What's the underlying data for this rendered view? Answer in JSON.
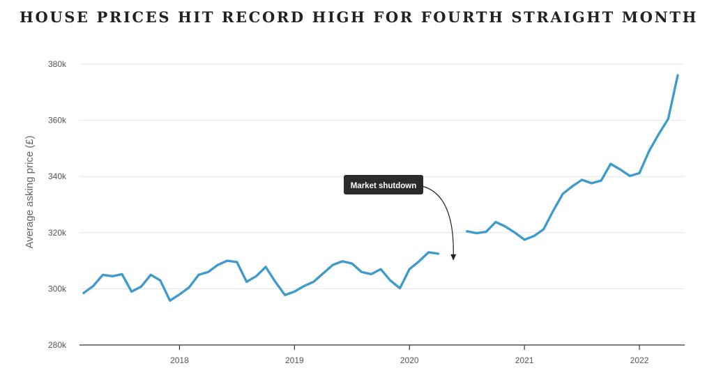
{
  "chart_data": {
    "type": "line",
    "title": "HOUSE PRICES HIT RECORD HIGH FOR FOURTH STRAIGHT MONTH",
    "xlabel": "",
    "ylabel": "Average asking price (£)",
    "ylim": [
      280000,
      380000
    ],
    "y_ticks": [
      {
        "value": 280000,
        "label": "280k"
      },
      {
        "value": 300000,
        "label": "300k"
      },
      {
        "value": 320000,
        "label": "320k"
      },
      {
        "value": 340000,
        "label": "340k"
      },
      {
        "value": 360000,
        "label": "360k"
      },
      {
        "value": 380000,
        "label": "380k"
      }
    ],
    "x_range": [
      "2017-03",
      "2022-05"
    ],
    "x_ticks": [
      {
        "value": "2018-01",
        "label": "2018"
      },
      {
        "value": "2019-01",
        "label": "2019"
      },
      {
        "value": "2020-01",
        "label": "2020"
      },
      {
        "value": "2021-01",
        "label": "2021"
      },
      {
        "value": "2022-01",
        "label": "2022"
      }
    ],
    "grid": "horizontal",
    "line_color": "#3e9bcb",
    "series": [
      {
        "segments": [
          [
            [
              "2017-03",
              298500
            ],
            [
              "2017-04",
              301000
            ],
            [
              "2017-05",
              305000
            ],
            [
              "2017-06",
              304500
            ],
            [
              "2017-07",
              305200
            ],
            [
              "2017-08",
              299000
            ],
            [
              "2017-09",
              300800
            ],
            [
              "2017-10",
              305000
            ],
            [
              "2017-11",
              303000
            ],
            [
              "2017-12",
              295800
            ],
            [
              "2018-01",
              298000
            ],
            [
              "2018-02",
              300500
            ],
            [
              "2018-03",
              305000
            ],
            [
              "2018-04",
              306000
            ],
            [
              "2018-05",
              308500
            ],
            [
              "2018-06",
              310000
            ],
            [
              "2018-07",
              309500
            ],
            [
              "2018-08",
              302500
            ],
            [
              "2018-09",
              304500
            ],
            [
              "2018-10",
              307800
            ],
            [
              "2018-11",
              302500
            ],
            [
              "2018-12",
              297800
            ],
            [
              "2019-01",
              299000
            ],
            [
              "2019-02",
              301000
            ],
            [
              "2019-03",
              302500
            ],
            [
              "2019-04",
              305500
            ],
            [
              "2019-05",
              308500
            ],
            [
              "2019-06",
              309800
            ],
            [
              "2019-07",
              309000
            ],
            [
              "2019-08",
              306000
            ],
            [
              "2019-09",
              305200
            ],
            [
              "2019-10",
              307000
            ],
            [
              "2019-11",
              303000
            ],
            [
              "2019-12",
              300200
            ],
            [
              "2020-01",
              307000
            ],
            [
              "2020-02",
              309800
            ],
            [
              "2020-03",
              313000
            ],
            [
              "2020-04",
              312500
            ]
          ],
          [
            [
              "2020-07",
              320500
            ],
            [
              "2020-08",
              319800
            ],
            [
              "2020-09",
              320300
            ],
            [
              "2020-10",
              323800
            ],
            [
              "2020-11",
              322200
            ],
            [
              "2020-12",
              320000
            ],
            [
              "2021-01",
              317500
            ],
            [
              "2021-02",
              318800
            ],
            [
              "2021-03",
              321200
            ],
            [
              "2021-04",
              327800
            ],
            [
              "2021-05",
              333800
            ],
            [
              "2021-06",
              336500
            ],
            [
              "2021-07",
              338800
            ],
            [
              "2021-08",
              337600
            ],
            [
              "2021-09",
              338500
            ],
            [
              "2021-10",
              344500
            ],
            [
              "2021-11",
              342500
            ],
            [
              "2021-12",
              340200
            ],
            [
              "2022-01",
              341200
            ],
            [
              "2022-02",
              349000
            ],
            [
              "2022-03",
              355000
            ],
            [
              "2022-04",
              360500
            ],
            [
              "2022-05",
              376000
            ]
          ]
        ]
      }
    ],
    "annotations": [
      {
        "text": "Market shutdown",
        "points_to": [
          "2020-05",
          316000
        ]
      }
    ]
  }
}
